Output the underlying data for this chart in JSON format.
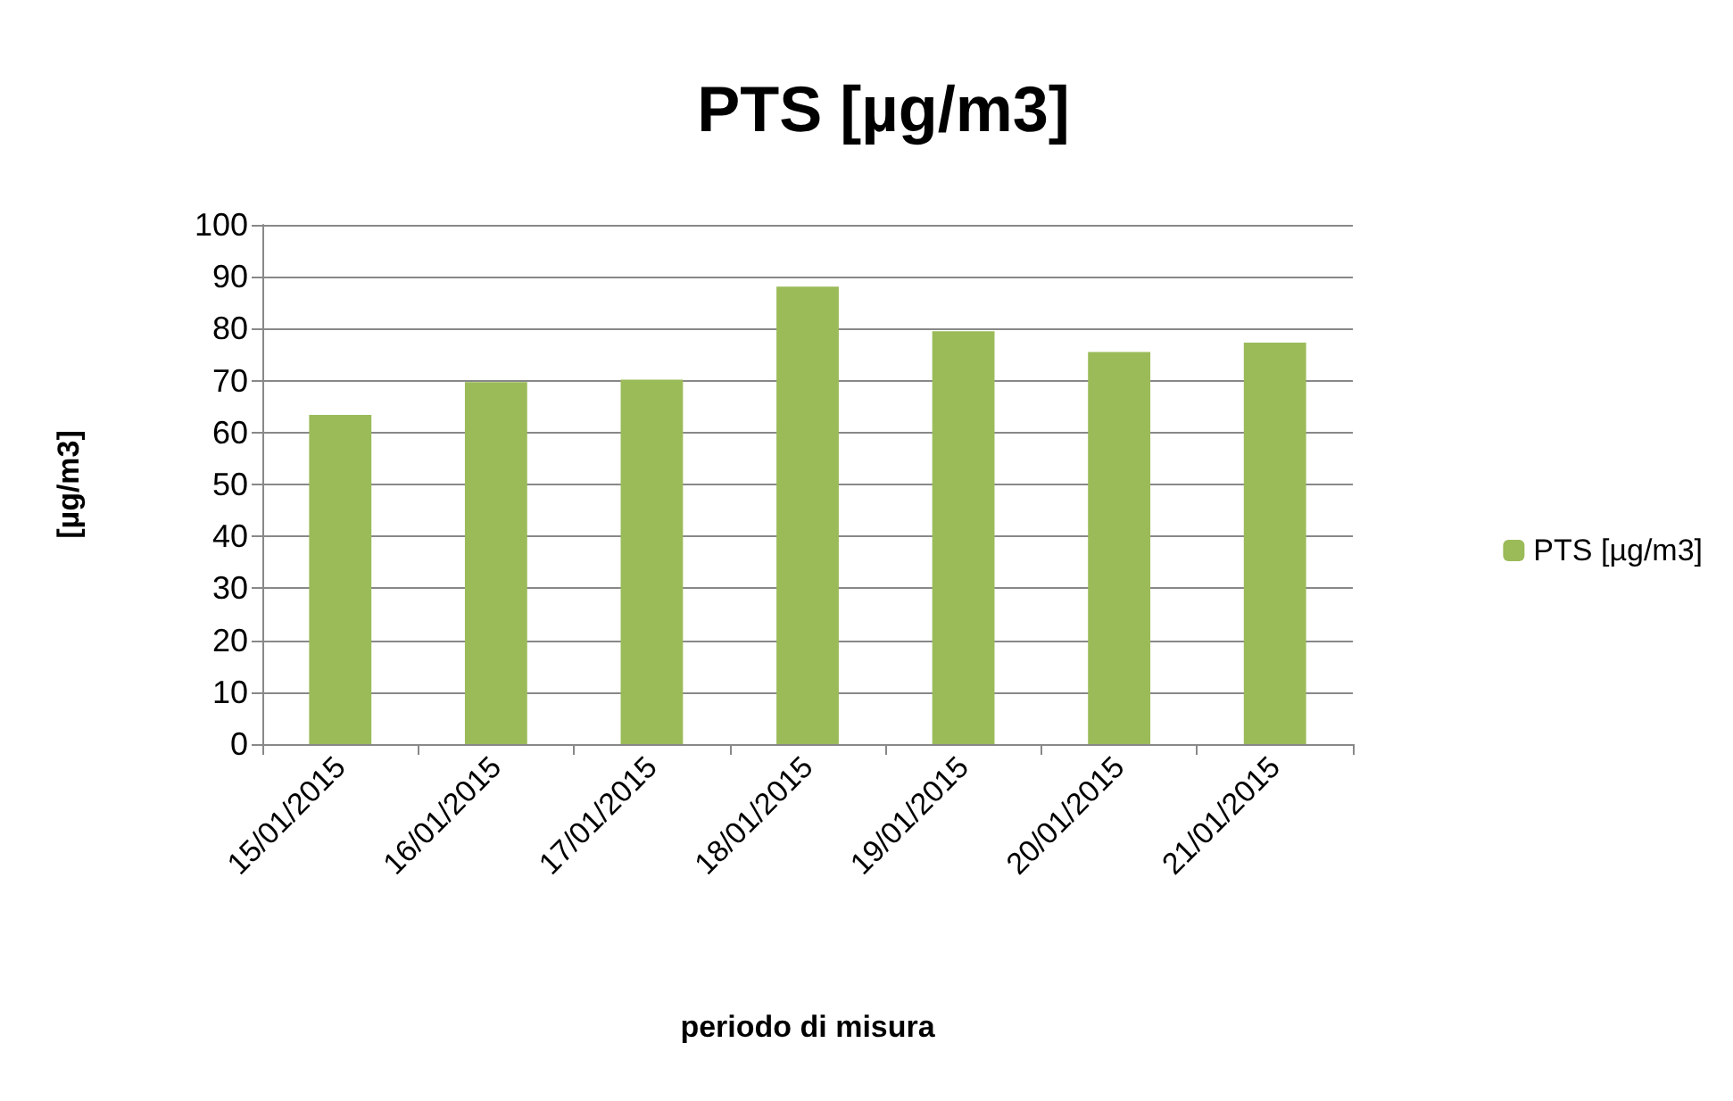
{
  "chart_data": {
    "type": "bar",
    "title": "PTS [µg/m3]",
    "xlabel": "periodo di misura",
    "ylabel": "[µg/m3]",
    "categories": [
      "15/01/2015",
      "16/01/2015",
      "17/01/2015",
      "18/01/2015",
      "19/01/2015",
      "20/01/2015",
      "21/01/2015"
    ],
    "series": [
      {
        "name": "PTS [µg/m3]",
        "color": "#9bbb59",
        "values": [
          63.4,
          69.7,
          70.2,
          88.1,
          79.5,
          75.5,
          77.3
        ]
      }
    ],
    "ylim": [
      0,
      100
    ],
    "yticks": [
      0,
      10,
      20,
      30,
      40,
      50,
      60,
      70,
      80,
      90,
      100
    ],
    "grid": "y",
    "legend": "right"
  }
}
